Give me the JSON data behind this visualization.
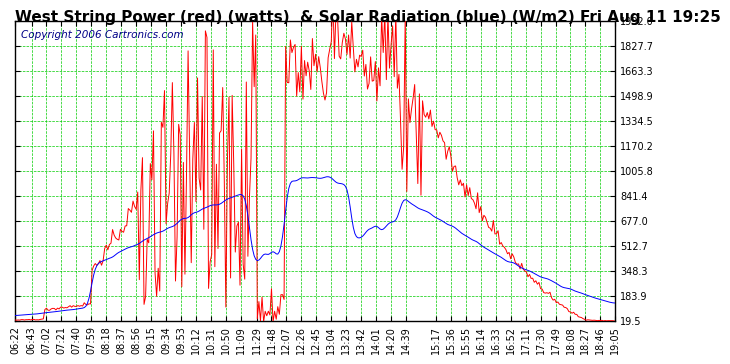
{
  "title": "West String Power (red) (watts)  & Solar Radiation (blue) (W/m2) Fri Aug 11 19:25",
  "copyright": "Copyright 2006 Cartronics.com",
  "bg_color": "#ffffff",
  "plot_bg_color": "#ffffff",
  "grid_color": "#00cc00",
  "line_red": "#ff0000",
  "line_blue": "#0000ff",
  "ymin": 19.5,
  "ymax": 1992.0,
  "yticks": [
    19.5,
    183.9,
    348.3,
    512.7,
    677.0,
    841.4,
    1005.8,
    1170.2,
    1334.5,
    1498.9,
    1663.3,
    1827.7,
    1992.0
  ],
  "title_fontsize": 11,
  "copyright_fontsize": 7.5,
  "tick_fontsize": 7,
  "axis_label_color": "#000000"
}
